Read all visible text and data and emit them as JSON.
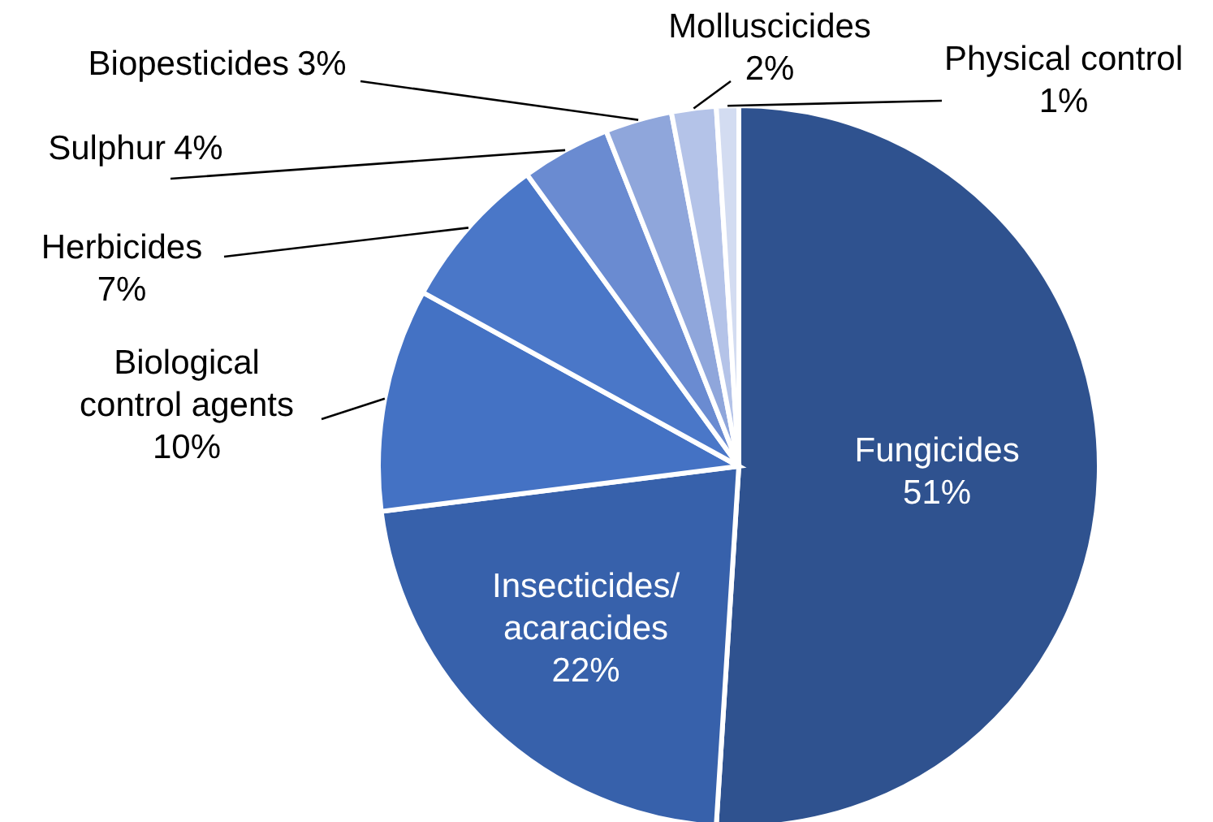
{
  "chart_data": {
    "type": "pie",
    "categories": [
      "Fungicides",
      "Insecticides/acaracides",
      "Biological control agents",
      "Herbicides",
      "Sulphur",
      "Biopesticides",
      "Molluscicides",
      "Physical control"
    ],
    "values": [
      51,
      22,
      10,
      7,
      4,
      3,
      2,
      1
    ],
    "colors": [
      "#2f528f",
      "#3761ab",
      "#4472c4",
      "#4a77c8",
      "#6a8bd1",
      "#8fa6db",
      "#b4c3e8",
      "#d3dcf1"
    ],
    "value_labels": [
      "51%",
      "22%",
      "10%",
      "7%",
      "4%",
      "3%",
      "2%",
      "1%"
    ]
  }
}
